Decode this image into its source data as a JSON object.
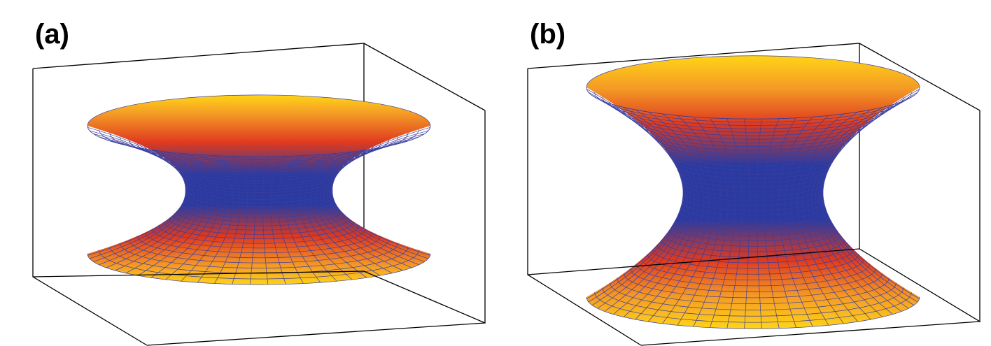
{
  "panels": [
    {
      "id": "a",
      "label": "(a)",
      "surface": "wormhole-embedding",
      "shape": "short"
    },
    {
      "id": "b",
      "label": "(b)",
      "surface": "wormhole-embedding",
      "shape": "tall"
    }
  ],
  "colors": {
    "throat": "#2a3aa0",
    "mid": "#e03a1e",
    "outer": "#ffd416",
    "mesh": "#3a3fa0",
    "box": "#000000"
  }
}
